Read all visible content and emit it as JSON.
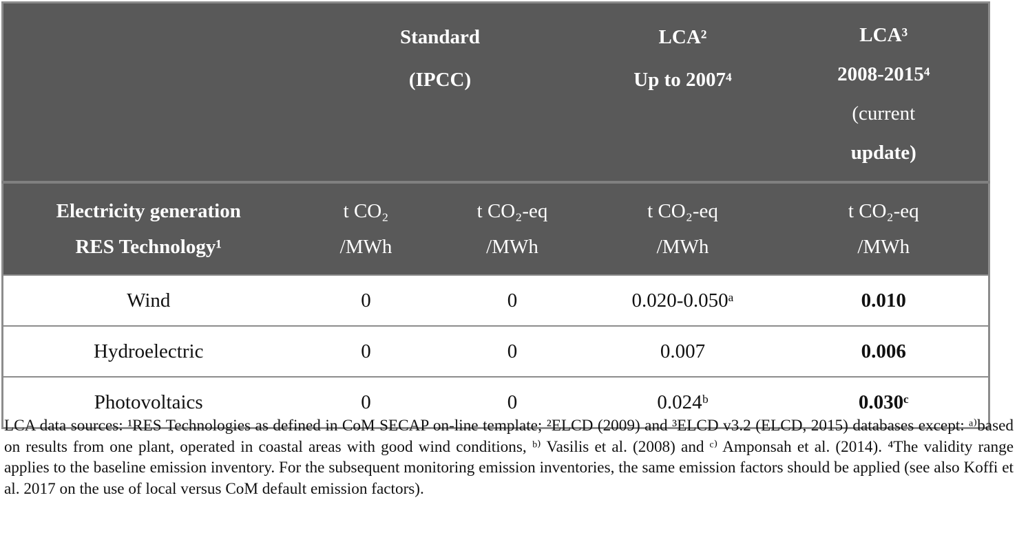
{
  "table": {
    "group_header": {
      "standard": [
        "Standard",
        "(IPCC)"
      ],
      "lca_2007": [
        "LCA²",
        "Up to 2007⁴"
      ],
      "lca_2015": [
        "LCA³",
        "2008-2015⁴",
        "(current",
        "update)"
      ]
    },
    "unit_header": [
      [
        "Electricity generation",
        "RES  Technology¹"
      ],
      [
        "t CO₂",
        "/MWh"
      ],
      [
        "t CO₂-eq",
        "/MWh"
      ],
      [
        "t CO₂-eq",
        "/MWh"
      ],
      [
        "t CO₂-eq",
        "/MWh"
      ]
    ],
    "rows": [
      [
        "Wind",
        "0",
        "0",
        "0.020-0.050ᵃ",
        "0.010"
      ],
      [
        "Hydroelectric",
        "0",
        "0",
        "0.007",
        "0.006"
      ],
      [
        "Photovoltaics",
        "0",
        "0",
        "0.024ᵇ",
        "0.030ᶜ"
      ]
    ]
  },
  "footnote": "LCA data sources: ¹RES Technologies as defined in CoM SECAP on-line template; ²ELCD (2009) and ³ELCD v3.2 (ELCD, 2015) databases except: ᵃ⁾based on results from one plant, operated in coastal areas with good wind conditions, ᵇ⁾ Vasilis et al. (2008) and ᶜ⁾ Amponsah et al. (2014). ⁴The validity range applies to the baseline emission inventory. For the subsequent monitoring emission inventories, the same emission factors should be applied (see also Koffi et al. 2017 on the use of local versus CoM default emission factors)."
}
